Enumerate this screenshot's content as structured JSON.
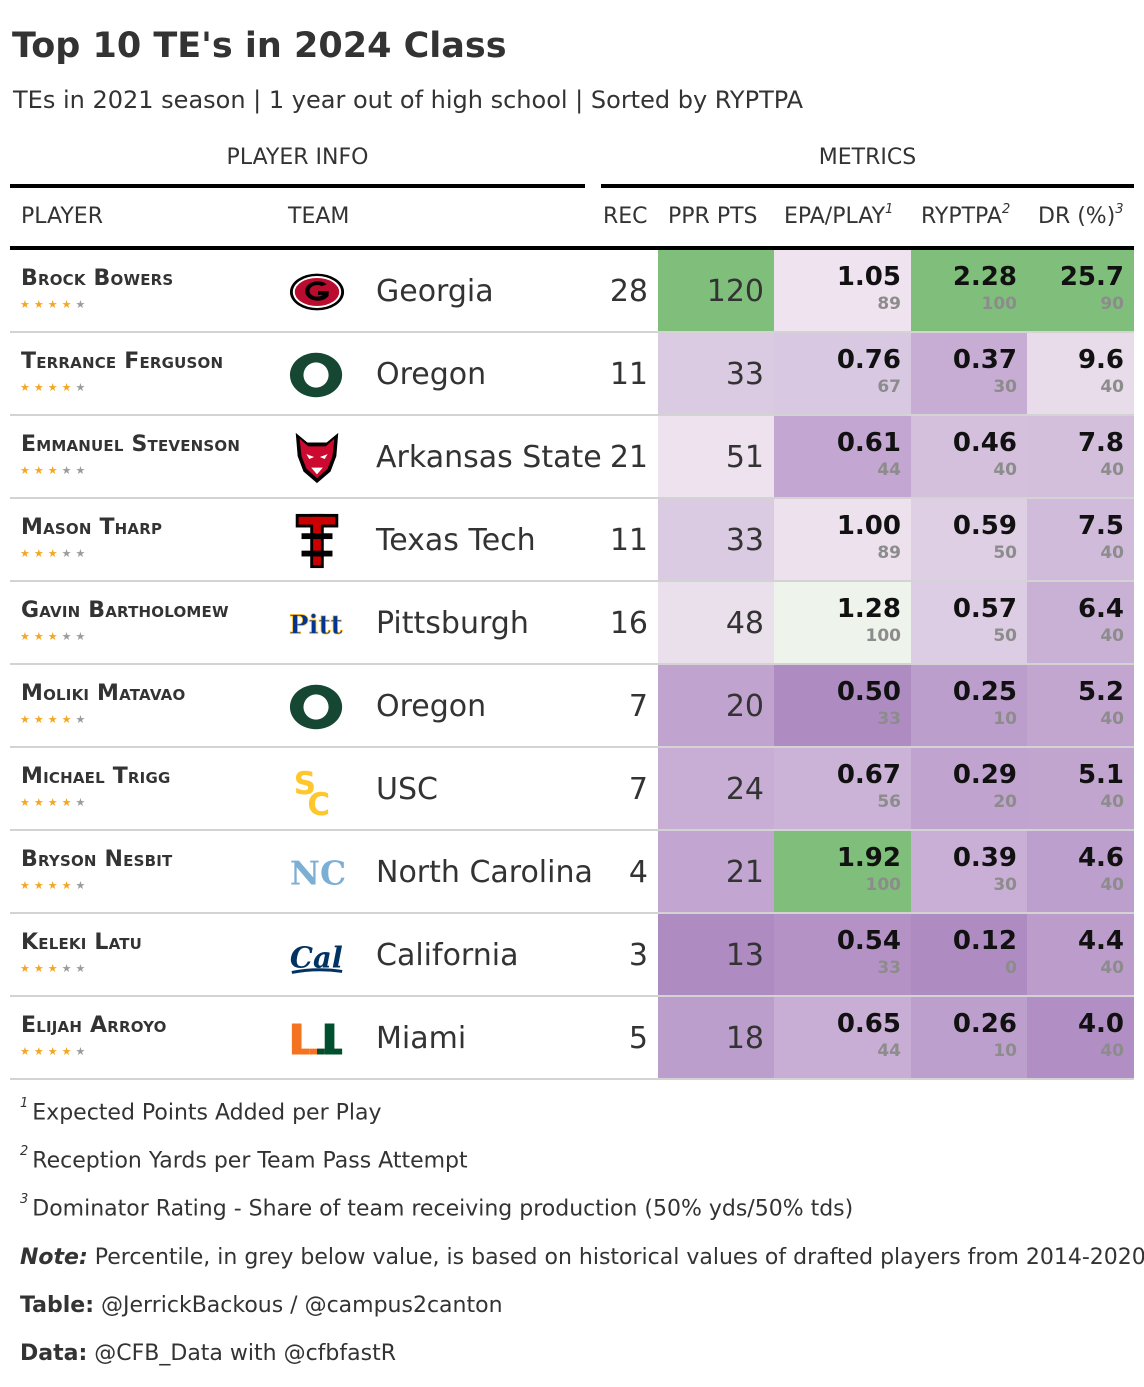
{
  "title": "Top 10 TE's in 2024 Class",
  "subtitle": "TEs in 2021 season | 1 year out of high school | Sorted by RYPTPA",
  "spanners": {
    "player_info": "PLAYER INFO",
    "metrics": "METRICS"
  },
  "columns": {
    "player": "PLAYER",
    "team": "TEAM",
    "rec": "REC",
    "ppr": "PPR PTS",
    "epa": "EPA/PLAY",
    "epa_note": "1",
    "ryptpa": "RYPTPA",
    "ryptpa_note": "2",
    "dr": "DR (%)",
    "dr_note": "3"
  },
  "players": [
    {
      "name": "Brock Bowers",
      "stars": 4,
      "team": "Georgia",
      "logo": "georgia-logo",
      "rec": "28",
      "ppr": "120",
      "epa": "1.05",
      "epa_pct": "89",
      "ryptpa": "2.28",
      "ryptpa_pct": "100",
      "dr": "25.7",
      "dr_pct": "90",
      "colors": {
        "ppr": "#7fbf7b",
        "epa": "#efe3ef",
        "ryp": "#7fbf7b",
        "dr": "#7fbf7b"
      }
    },
    {
      "name": "Terrance Ferguson",
      "stars": 4,
      "team": "Oregon",
      "logo": "oregon-logo",
      "rec": "11",
      "ppr": "33",
      "epa": "0.76",
      "epa_pct": "67",
      "ryptpa": "0.37",
      "ryptpa_pct": "30",
      "dr": "9.6",
      "dr_pct": "40",
      "colors": {
        "ppr": "#dacbe2",
        "epa": "#d9c8e1",
        "ryp": "#c7acd4",
        "dr": "#e9dcea"
      }
    },
    {
      "name": "Emmanuel Stevenson",
      "stars": 3,
      "team": "Arkansas State",
      "logo": "arkansas-state-logo",
      "rec": "21",
      "ppr": "51",
      "epa": "0.61",
      "epa_pct": "44",
      "ryptpa": "0.46",
      "ryptpa_pct": "40",
      "dr": "7.8",
      "dr_pct": "40",
      "colors": {
        "ppr": "#ede2ee",
        "epa": "#c3a6d1",
        "ryp": "#d4c0dd",
        "dr": "#d3bedc"
      }
    },
    {
      "name": "Mason Tharp",
      "stars": 3,
      "team": "Texas Tech",
      "logo": "texas-tech-logo",
      "rec": "11",
      "ppr": "33",
      "epa": "1.00",
      "epa_pct": "89",
      "ryptpa": "0.59",
      "ryptpa_pct": "50",
      "dr": "7.5",
      "dr_pct": "40",
      "colors": {
        "ppr": "#dacbe2",
        "epa": "#ede1ee",
        "ryp": "#dfcfe5",
        "dr": "#d1bbdb"
      }
    },
    {
      "name": "Gavin Bartholomew",
      "stars": 3,
      "team": "Pittsburgh",
      "logo": "pitt-logo",
      "rec": "16",
      "ppr": "48",
      "epa": "1.28",
      "epa_pct": "100",
      "ryptpa": "0.57",
      "ryptpa_pct": "50",
      "dr": "6.4",
      "dr_pct": "40",
      "colors": {
        "ppr": "#eae0ec",
        "epa": "#eef3ec",
        "ryp": "#ddcde4",
        "dr": "#c9b1d6"
      }
    },
    {
      "name": "Moliki Matavao",
      "stars": 4,
      "team": "Oregon",
      "logo": "oregon-logo",
      "rec": "7",
      "ppr": "20",
      "epa": "0.50",
      "epa_pct": "33",
      "ryptpa": "0.25",
      "ryptpa_pct": "10",
      "dr": "5.2",
      "dr_pct": "40",
      "colors": {
        "ppr": "#c0a3cf",
        "epa": "#ae8bc1",
        "ryp": "#bc9ecc",
        "dr": "#c2a6d0"
      }
    },
    {
      "name": "Michael Trigg",
      "stars": 4,
      "team": "USC",
      "logo": "usc-logo",
      "rec": "7",
      "ppr": "24",
      "epa": "0.67",
      "epa_pct": "56",
      "ryptpa": "0.29",
      "ryptpa_pct": "20",
      "dr": "5.1",
      "dr_pct": "40",
      "colors": {
        "ppr": "#c8aed5",
        "epa": "#cbb3d8",
        "ryp": "#c0a3cf",
        "dr": "#c1a5cf"
      }
    },
    {
      "name": "Bryson Nesbit",
      "stars": 4,
      "team": "North Carolina",
      "logo": "unc-logo",
      "rec": "4",
      "ppr": "21",
      "epa": "1.92",
      "epa_pct": "100",
      "ryptpa": "0.39",
      "ryptpa_pct": "30",
      "dr": "4.6",
      "dr_pct": "40",
      "colors": {
        "ppr": "#c2a6d1",
        "epa": "#7fbf7b",
        "ryp": "#c9afd6",
        "dr": "#bd9fcd"
      }
    },
    {
      "name": "Keleki Latu",
      "stars": 3,
      "team": "California",
      "logo": "cal-logo",
      "rec": "3",
      "ppr": "13",
      "epa": "0.54",
      "epa_pct": "33",
      "ryptpa": "0.12",
      "ryptpa_pct": "0",
      "dr": "4.4",
      "dr_pct": "40",
      "colors": {
        "ppr": "#ae8bc1",
        "epa": "#b592c6",
        "ryp": "#ae8bc1",
        "dr": "#bb9ccb"
      }
    },
    {
      "name": "Elijah Arroyo",
      "stars": 4,
      "team": "Miami",
      "logo": "miami-logo",
      "rec": "5",
      "ppr": "18",
      "epa": "0.65",
      "epa_pct": "44",
      "ryptpa": "0.26",
      "ryptpa_pct": "10",
      "dr": "4.0",
      "dr_pct": "40",
      "colors": {
        "ppr": "#bc9ecc",
        "epa": "#c8aed5",
        "ryp": "#bd9fcd",
        "dr": "#b18ec3"
      }
    }
  ],
  "footnotes": [
    {
      "mark": "1",
      "text": "Expected Points Added per Play"
    },
    {
      "mark": "2",
      "text": "Reception Yards per Team Pass Attempt"
    },
    {
      "mark": "3",
      "text": "Dominator Rating - Share of team receiving production (50% yds/50% tds)"
    }
  ],
  "note": {
    "label": "Note:",
    "text": " Percentile, in grey below value, is based on historical values of drafted players from 2014-2020"
  },
  "credit_table": {
    "label": "Table:",
    "text": " @JerrickBackous / @campus2canton"
  },
  "credit_data": {
    "label": "Data:",
    "text": " @CFB_Data with @cfbfastR"
  }
}
